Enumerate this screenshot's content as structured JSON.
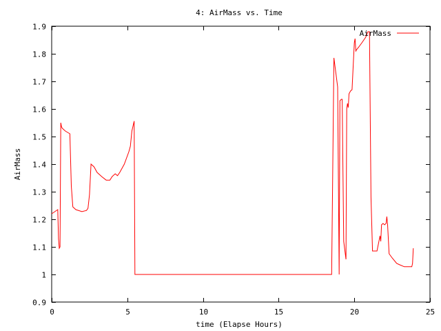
{
  "colors": {
    "background": "#ffffff",
    "axis": "#000000",
    "series": "#ff0000"
  },
  "chart_data": {
    "type": "line",
    "title": "4: AirMass vs. Time",
    "xlabel": "time (Elapse Hours)",
    "ylabel": "AirMass",
    "xlim": [
      0,
      25
    ],
    "ylim": [
      0.9,
      1.9
    ],
    "xticks": [
      0,
      5,
      10,
      15,
      20,
      25
    ],
    "yticks": [
      0.9,
      1.0,
      1.1,
      1.2,
      1.3,
      1.4,
      1.5,
      1.6,
      1.7,
      1.8,
      1.9
    ],
    "grid": false,
    "legend_position": "top-right",
    "series": [
      {
        "name": "AirMass",
        "color": "#ff0000",
        "x": [
          0.0,
          0.4,
          0.45,
          0.5,
          0.55,
          0.6,
          0.65,
          0.7,
          0.9,
          1.2,
          1.3,
          1.4,
          1.6,
          2.0,
          2.3,
          2.4,
          2.5,
          2.6,
          2.8,
          3.0,
          3.3,
          3.6,
          3.85,
          4.0,
          4.2,
          4.35,
          4.5,
          4.8,
          5.1,
          5.2,
          5.3,
          5.45,
          5.5,
          6.0,
          8.0,
          10.0,
          14.0,
          18.2,
          18.5,
          18.65,
          18.9,
          19.0,
          19.05,
          19.15,
          19.2,
          19.3,
          19.45,
          19.5,
          19.55,
          19.6,
          19.65,
          19.75,
          19.85,
          20.0,
          20.05,
          20.1,
          20.15,
          20.3,
          20.5,
          20.75,
          20.9,
          21.0,
          21.1,
          21.2,
          21.25,
          21.5,
          21.7,
          21.75,
          21.8,
          21.9,
          22.0,
          22.1,
          22.15,
          22.2,
          22.3,
          22.5,
          22.8,
          23.0,
          23.3,
          23.6,
          23.8,
          23.85,
          23.9
        ],
        "y": [
          1.22,
          1.235,
          1.13,
          1.095,
          1.1,
          1.55,
          1.535,
          1.53,
          1.52,
          1.51,
          1.32,
          1.245,
          1.235,
          1.228,
          1.232,
          1.24,
          1.29,
          1.4,
          1.39,
          1.37,
          1.355,
          1.342,
          1.342,
          1.355,
          1.365,
          1.358,
          1.37,
          1.4,
          1.445,
          1.465,
          1.52,
          1.556,
          1.0,
          1.0,
          1.0,
          1.0,
          1.0,
          1.0,
          1.0,
          1.785,
          1.68,
          1.0,
          1.63,
          1.635,
          1.635,
          1.12,
          1.055,
          1.6,
          1.62,
          1.605,
          1.655,
          1.665,
          1.67,
          1.84,
          1.855,
          1.81,
          1.815,
          1.825,
          1.84,
          1.86,
          1.88,
          1.88,
          1.28,
          1.085,
          1.085,
          1.085,
          1.14,
          1.12,
          1.18,
          1.185,
          1.18,
          1.185,
          1.21,
          1.18,
          1.075,
          1.06,
          1.04,
          1.035,
          1.028,
          1.028,
          1.028,
          1.04,
          1.095
        ]
      }
    ]
  }
}
